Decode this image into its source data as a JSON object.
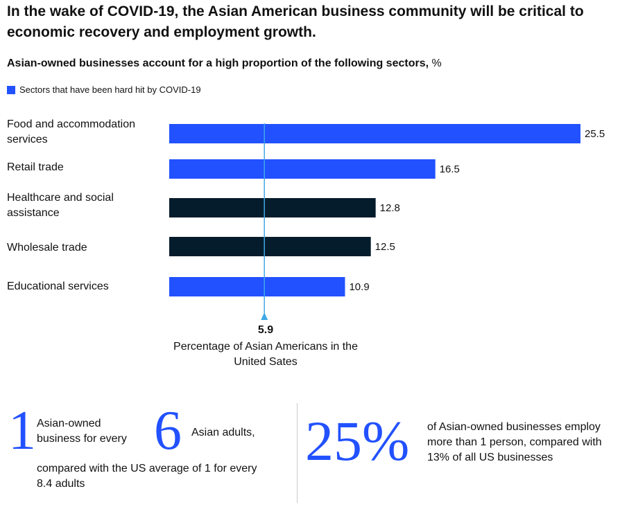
{
  "title": "In the wake of COVID-19, the Asian American business community will be critical to economic recovery and employment growth.",
  "subtitle": "Asian-owned businesses account for a high proportion of the following sectors,",
  "subtitle_unit": "%",
  "legend": {
    "label": "Sectors that have been hard hit by COVID-19",
    "color": "#2251ff"
  },
  "colors": {
    "hard_hit": "#2251ff",
    "other": "#051c2c",
    "reference": "#3fa9e6"
  },
  "chart_data": {
    "type": "bar",
    "orientation": "horizontal",
    "categories": [
      "Food and accommodation services",
      "Retail trade",
      "Healthcare and social assistance",
      "Wholesale trade",
      "Educational services"
    ],
    "values": [
      25.5,
      16.5,
      12.8,
      12.5,
      10.9
    ],
    "value_labels": [
      "25.5",
      "16.5",
      "12.8",
      "12.5",
      "10.9"
    ],
    "hard_hit": [
      true,
      true,
      false,
      false,
      true
    ],
    "reference_line": {
      "value": 5.9,
      "value_label": "5.9",
      "label": "Percentage of Asian Americans in the United Sates"
    },
    "xlim": [
      0,
      25.5
    ],
    "grid": false,
    "legend_position": "top-left"
  },
  "stats": {
    "left": {
      "num1": "1",
      "text1": "Asian-owned business for every",
      "num2": "6",
      "text2": "Asian adults,",
      "text3": "compared with the US average of 1 for every 8.4 adults"
    },
    "right": {
      "num": "25%",
      "text": "of Asian-owned businesses employ more than 1 person, compared with 13% of all US businesses"
    }
  }
}
